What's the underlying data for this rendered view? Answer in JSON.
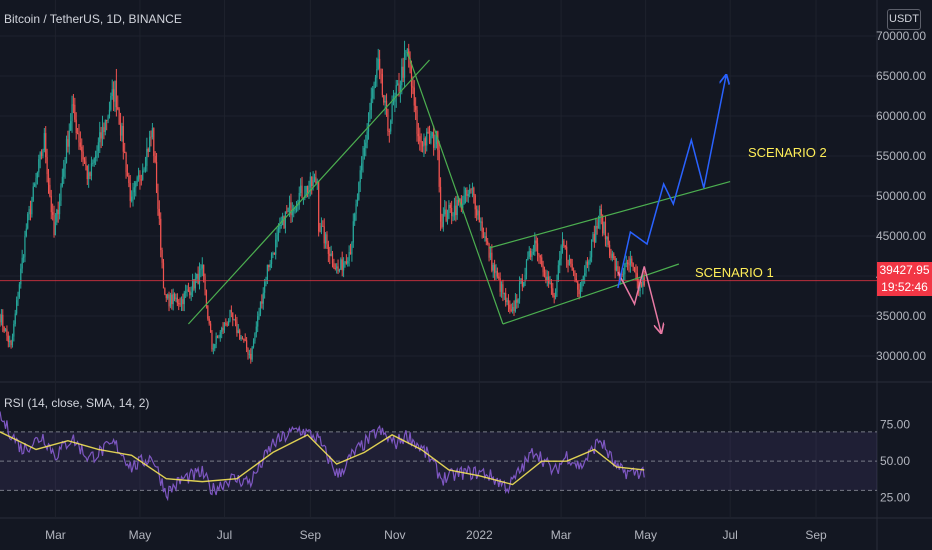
{
  "header": {
    "title": "Bitcoin / TetherUS, 1D, BINANCE"
  },
  "price_axis": {
    "unit": "USDT",
    "last_price": "39427.95",
    "countdown": "19:52:46"
  },
  "rsi_panel": {
    "title": "RSI (14, close, SMA, 14, 2)"
  },
  "annotations": {
    "scenario_1": "SCENARIO 1",
    "scenario_2": "SCENARIO 2"
  },
  "colors": {
    "background": "#131722",
    "up": "#26a69a",
    "down": "#ef5350",
    "rsi": "#7e57c2",
    "rsi_ma": "#ffee58",
    "trendline": "#4caf50",
    "scenario_1": "#e87aa4",
    "scenario_2": "#2962ff",
    "last_price": "#f23645"
  },
  "chart_data": [
    {
      "type": "candlestick",
      "title": "Bitcoin / TetherUS, 1D, BINANCE",
      "ylabel": "USDT",
      "ylim": [
        27000,
        72000
      ],
      "yticks": [
        30000,
        35000,
        40000,
        45000,
        50000,
        55000,
        60000,
        65000,
        70000
      ],
      "ytick_labels": [
        "30000.00",
        "35000.00",
        "40000.00",
        "45000.00",
        "50000.00",
        "55000.00",
        "60000.00",
        "65000.00",
        "70000.00"
      ],
      "xlim": [
        "2021-01-20",
        "2022-10-15"
      ],
      "xticks": [
        "2021-03-01",
        "2021-05-01",
        "2021-07-01",
        "2021-09-01",
        "2021-11-01",
        "2022-01-01",
        "2022-03-01",
        "2022-05-01",
        "2022-07-01",
        "2022-09-01"
      ],
      "xtick_labels": [
        "Mar",
        "May",
        "Jul",
        "Sep",
        "Nov",
        "2022",
        "Mar",
        "May",
        "Jul",
        "Sep"
      ],
      "price_path": [
        {
          "x": "2021-01-20",
          "y": 35000
        },
        {
          "x": "2021-01-28",
          "y": 31000
        },
        {
          "x": "2021-02-08",
          "y": 46000
        },
        {
          "x": "2021-02-21",
          "y": 57000
        },
        {
          "x": "2021-02-28",
          "y": 45000
        },
        {
          "x": "2021-03-13",
          "y": 61000
        },
        {
          "x": "2021-03-25",
          "y": 52000
        },
        {
          "x": "2021-04-13",
          "y": 63500
        },
        {
          "x": "2021-04-25",
          "y": 49000
        },
        {
          "x": "2021-05-10",
          "y": 58000
        },
        {
          "x": "2021-05-19",
          "y": 37000
        },
        {
          "x": "2021-05-31",
          "y": 37000
        },
        {
          "x": "2021-06-15",
          "y": 40500
        },
        {
          "x": "2021-06-22",
          "y": 31000
        },
        {
          "x": "2021-07-05",
          "y": 35000
        },
        {
          "x": "2021-07-20",
          "y": 30000
        },
        {
          "x": "2021-08-01",
          "y": 41000
        },
        {
          "x": "2021-08-14",
          "y": 47500
        },
        {
          "x": "2021-08-23",
          "y": 50000
        },
        {
          "x": "2021-09-06",
          "y": 52000
        },
        {
          "x": "2021-09-07",
          "y": 46500
        },
        {
          "x": "2021-09-21",
          "y": 40500
        },
        {
          "x": "2021-09-30",
          "y": 43500
        },
        {
          "x": "2021-10-15",
          "y": 62000
        },
        {
          "x": "2021-10-20",
          "y": 66000
        },
        {
          "x": "2021-10-27",
          "y": 58500
        },
        {
          "x": "2021-11-10",
          "y": 68000
        },
        {
          "x": "2021-11-18",
          "y": 57000
        },
        {
          "x": "2021-12-02",
          "y": 57000
        },
        {
          "x": "2021-12-04",
          "y": 47000
        },
        {
          "x": "2021-12-27",
          "y": 50500
        },
        {
          "x": "2022-01-10",
          "y": 41500
        },
        {
          "x": "2022-01-24",
          "y": 35000
        },
        {
          "x": "2022-02-10",
          "y": 44500
        },
        {
          "x": "2022-02-24",
          "y": 37000
        },
        {
          "x": "2022-03-02",
          "y": 44000
        },
        {
          "x": "2022-03-14",
          "y": 38500
        },
        {
          "x": "2022-03-29",
          "y": 47500
        },
        {
          "x": "2022-04-11",
          "y": 40000
        },
        {
          "x": "2022-04-20",
          "y": 41500
        },
        {
          "x": "2022-04-26",
          "y": 38500
        },
        {
          "x": "2022-04-30",
          "y": 39428
        }
      ],
      "last_price": 39427.95,
      "trendlines": [
        {
          "name": "rising",
          "x": [
            "2021-06-05",
            "2021-11-26"
          ],
          "y": [
            34000,
            67000
          ]
        },
        {
          "name": "falling",
          "x": [
            "2021-11-10",
            "2022-01-18"
          ],
          "y": [
            68000,
            34000
          ]
        },
        {
          "name": "channel-upper",
          "x": [
            "2022-01-08",
            "2022-07-01"
          ],
          "y": [
            43500,
            51800
          ]
        },
        {
          "name": "channel-lower",
          "x": [
            "2022-01-18",
            "2022-05-25"
          ],
          "y": [
            34000,
            41500
          ]
        }
      ],
      "scenarios": [
        {
          "name": "SCENARIO 1",
          "x": [
            "2022-04-11",
            "2022-04-23",
            "2022-04-30",
            "2022-05-12"
          ],
          "y": [
            40500,
            36500,
            41200,
            33000
          ]
        },
        {
          "name": "SCENARIO 2",
          "x": [
            "2022-04-11",
            "2022-04-20",
            "2022-05-02",
            "2022-05-14",
            "2022-05-21",
            "2022-06-03",
            "2022-06-12",
            "2022-06-28"
          ],
          "y": [
            38500,
            45500,
            44000,
            51500,
            49000,
            57000,
            51000,
            65000
          ]
        }
      ]
    },
    {
      "type": "line",
      "title": "RSI (14, close, SMA, 14, 2)",
      "ylim": [
        20,
        85
      ],
      "yticks": [
        25,
        50,
        75
      ],
      "ytick_labels": [
        "25.00",
        "50.00",
        "75.00"
      ],
      "bands": {
        "upper": 70,
        "middle": 50,
        "lower": 30
      },
      "series": [
        {
          "name": "RSI",
          "x": [
            "2021-01-20",
            "2021-02-05",
            "2021-02-20",
            "2021-03-01",
            "2021-03-13",
            "2021-03-25",
            "2021-04-13",
            "2021-04-25",
            "2021-05-10",
            "2021-05-20",
            "2021-06-01",
            "2021-06-15",
            "2021-06-22",
            "2021-07-05",
            "2021-07-20",
            "2021-08-05",
            "2021-08-23",
            "2021-09-06",
            "2021-09-21",
            "2021-10-01",
            "2021-10-20",
            "2021-11-01",
            "2021-11-10",
            "2021-11-25",
            "2021-12-05",
            "2021-12-20",
            "2022-01-05",
            "2022-01-22",
            "2022-02-10",
            "2022-02-24",
            "2022-03-05",
            "2022-03-15",
            "2022-03-29",
            "2022-04-11",
            "2022-04-20",
            "2022-04-30"
          ],
          "y": [
            80,
            58,
            67,
            54,
            66,
            52,
            62,
            46,
            53,
            28,
            38,
            42,
            30,
            38,
            36,
            62,
            72,
            66,
            40,
            54,
            71,
            62,
            68,
            54,
            38,
            42,
            42,
            32,
            58,
            42,
            54,
            46,
            65,
            44,
            42,
            43
          ]
        },
        {
          "name": "MA",
          "x": [
            "2021-01-20",
            "2021-02-15",
            "2021-03-10",
            "2021-04-01",
            "2021-04-25",
            "2021-05-20",
            "2021-06-15",
            "2021-07-10",
            "2021-08-05",
            "2021-08-30",
            "2021-09-20",
            "2021-10-10",
            "2021-10-30",
            "2021-11-20",
            "2021-12-10",
            "2022-01-01",
            "2022-01-25",
            "2022-02-15",
            "2022-03-05",
            "2022-03-25",
            "2022-04-10",
            "2022-04-30"
          ],
          "y": [
            70,
            58,
            64,
            58,
            54,
            38,
            36,
            38,
            56,
            68,
            48,
            56,
            68,
            58,
            44,
            40,
            34,
            50,
            50,
            58,
            46,
            44
          ]
        }
      ]
    }
  ]
}
